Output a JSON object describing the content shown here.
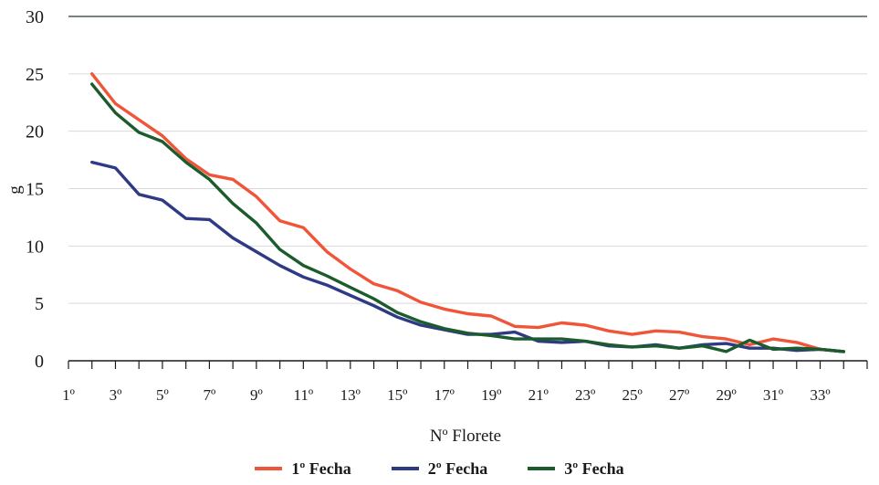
{
  "chart_data": {
    "type": "line",
    "xlabel": "Nº Florete",
    "ylabel": "g",
    "ylim": [
      0,
      30
    ],
    "yticks": [
      "0",
      "5",
      "10",
      "15",
      "20",
      "25",
      "30"
    ],
    "xticks": [
      "1º",
      "3º",
      "5º",
      "7º",
      "9º",
      "11º",
      "13º",
      "15º",
      "17º",
      "19º",
      "21º",
      "23º",
      "25º",
      "27º",
      "29º",
      "31º",
      "33º"
    ],
    "grid": true,
    "legend_position": "bottom",
    "x": [
      2,
      3,
      4,
      5,
      6,
      7,
      8,
      9,
      10,
      11,
      12,
      13,
      14,
      15,
      16,
      17,
      18,
      19,
      20,
      21,
      22,
      23,
      24,
      25,
      26,
      27,
      28,
      29,
      30,
      31,
      32,
      33,
      34
    ],
    "series": [
      {
        "name": "1º Fecha",
        "color": "#f0553a",
        "values": [
          25.0,
          22.4,
          21.0,
          19.6,
          17.6,
          16.2,
          15.8,
          14.3,
          12.2,
          11.6,
          9.5,
          8.0,
          6.7,
          6.1,
          5.1,
          4.5,
          4.1,
          3.9,
          3.0,
          2.9,
          3.3,
          3.1,
          2.6,
          2.3,
          2.6,
          2.5,
          2.1,
          1.9,
          1.4,
          1.9,
          1.6,
          1.0,
          0.8
        ]
      },
      {
        "name": "2º Fecha",
        "color": "#2e3a84",
        "values": [
          17.3,
          16.8,
          14.5,
          14.0,
          12.4,
          12.3,
          10.7,
          9.5,
          8.3,
          7.3,
          6.6,
          5.7,
          4.8,
          3.8,
          3.1,
          2.7,
          2.3,
          2.3,
          2.5,
          1.7,
          1.6,
          1.7,
          1.3,
          1.2,
          1.4,
          1.1,
          1.4,
          1.5,
          1.1,
          1.1,
          0.9,
          1.0,
          0.8
        ]
      },
      {
        "name": "3º Fecha",
        "color": "#1c5c2c",
        "values": [
          24.1,
          21.6,
          19.9,
          19.1,
          17.3,
          15.8,
          13.7,
          12.0,
          9.7,
          8.3,
          7.4,
          6.4,
          5.4,
          4.2,
          3.4,
          2.8,
          2.4,
          2.2,
          1.9,
          1.9,
          1.9,
          1.7,
          1.4,
          1.2,
          1.3,
          1.1,
          1.3,
          0.8,
          1.8,
          1.0,
          1.1,
          1.0,
          0.8
        ]
      }
    ]
  }
}
